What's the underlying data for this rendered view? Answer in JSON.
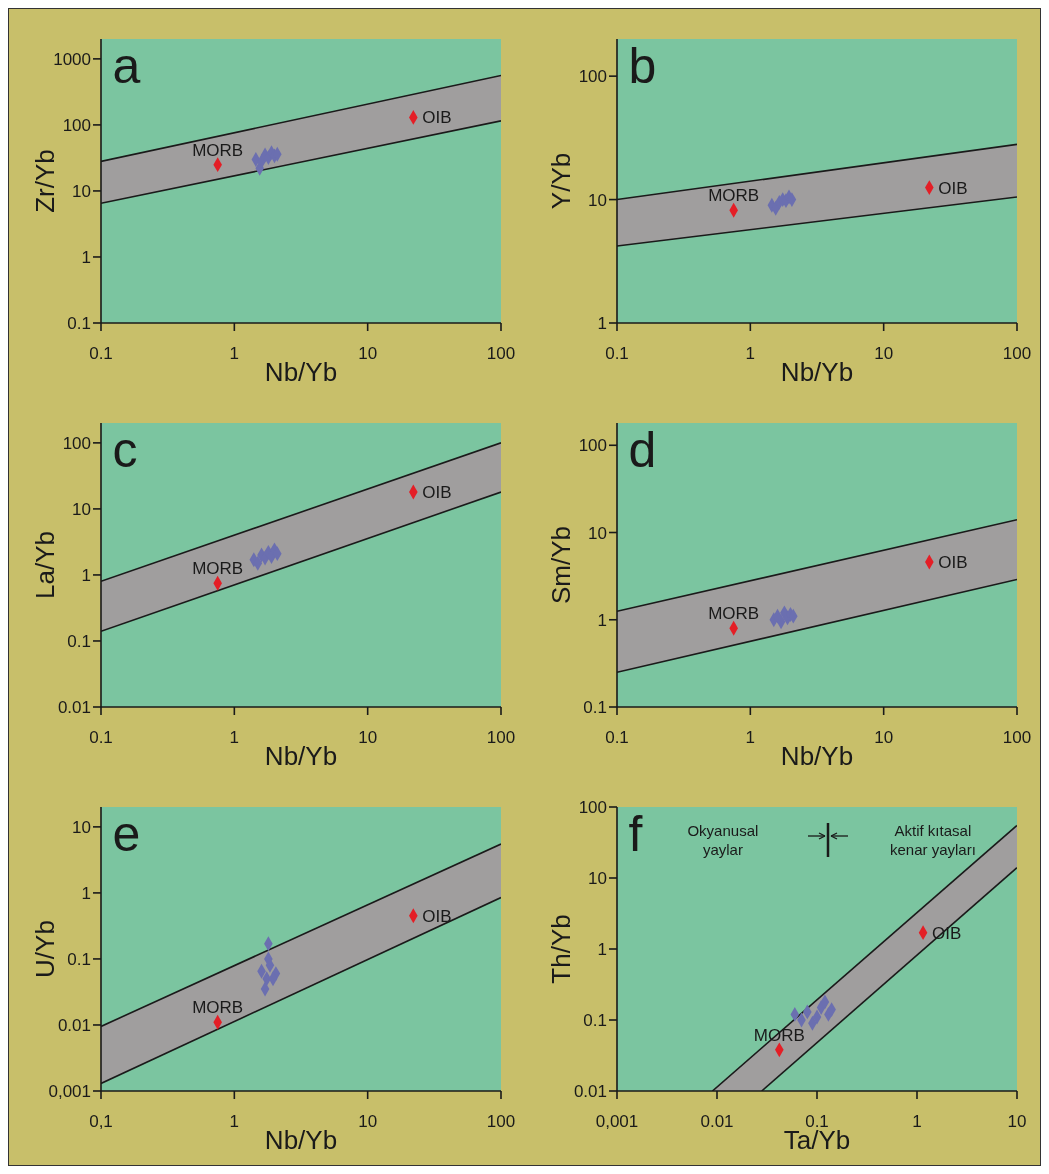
{
  "chart_data": [
    {
      "type": "scatter",
      "title": "a",
      "xlabel": "Nb/Yb",
      "ylabel": "Zr/Yb",
      "log": "xy",
      "xlim": [
        0.1,
        100
      ],
      "ylim": [
        0.1,
        2000
      ],
      "xticks": [
        0.1,
        1,
        10,
        100
      ],
      "yticks": [
        0.1,
        1,
        10,
        100,
        1000
      ],
      "series": [
        {
          "type": "area",
          "color": "#a09e9e",
          "x": [
            0.1,
            100
          ],
          "values": [
            28,
            560
          ]
        },
        {
          "type": "area",
          "color": "#7bc5a0",
          "x": [
            0.1,
            100
          ],
          "values": [
            6.5,
            115
          ]
        },
        {
          "type": "scatter",
          "marker": "diamond",
          "color": "#6b6fb0",
          "x": [
            1.45,
            1.55,
            1.6,
            1.7,
            1.8,
            1.9,
            2.0,
            2.1
          ],
          "values": [
            30,
            22,
            28,
            35,
            32,
            38,
            34,
            36
          ]
        },
        {
          "type": "scatter",
          "marker": "diamond",
          "color": "#e41e26",
          "x": [
            0.75,
            22
          ],
          "values": [
            25,
            130
          ]
        }
      ],
      "annotations": [
        {
          "text": "MORB",
          "x": 0.75,
          "y": 25
        },
        {
          "text": "OIB",
          "x": 22,
          "y": 130
        }
      ]
    },
    {
      "type": "scatter",
      "title": "b",
      "xlabel": "Nb/Yb",
      "ylabel": "Y/Yb",
      "log": "xy",
      "xlim": [
        0.1,
        100
      ],
      "ylim": [
        1,
        200
      ],
      "xticks": [
        0.1,
        1,
        10,
        100
      ],
      "yticks": [
        1,
        10,
        100
      ],
      "series": [
        {
          "type": "area",
          "color": "#a09e9e",
          "x": [
            0.1,
            100
          ],
          "values": [
            10,
            28
          ]
        },
        {
          "type": "area",
          "color": "#7bc5a0",
          "x": [
            0.1,
            100
          ],
          "values": [
            4.2,
            10.5
          ]
        },
        {
          "type": "scatter",
          "marker": "diamond",
          "color": "#6b6fb0",
          "x": [
            1.45,
            1.55,
            1.65,
            1.75,
            1.85,
            1.95,
            2.05
          ],
          "values": [
            9,
            8.5,
            9.5,
            10,
            9.8,
            10.5,
            10
          ]
        },
        {
          "type": "scatter",
          "marker": "diamond",
          "color": "#e41e26",
          "x": [
            0.75,
            22
          ],
          "values": [
            8.2,
            12.5
          ]
        }
      ],
      "annotations": [
        {
          "text": "MORB",
          "x": 0.75,
          "y": 8.2
        },
        {
          "text": "OIB",
          "x": 22,
          "y": 12.5
        }
      ]
    },
    {
      "type": "scatter",
      "title": "c",
      "xlabel": "Nb/Yb",
      "ylabel": "La/Yb",
      "log": "xy",
      "xlim": [
        0.1,
        100
      ],
      "ylim": [
        0.01,
        200
      ],
      "xticks": [
        0.1,
        1,
        10,
        100
      ],
      "yticks": [
        0.01,
        0.1,
        1,
        10,
        100
      ],
      "series": [
        {
          "type": "area",
          "color": "#a09e9e",
          "x": [
            0.1,
            100
          ],
          "values": [
            0.8,
            100
          ]
        },
        {
          "type": "area",
          "color": "#7bc5a0",
          "x": [
            0.1,
            100
          ],
          "values": [
            0.14,
            18
          ]
        },
        {
          "type": "scatter",
          "marker": "diamond",
          "color": "#6b6fb0",
          "x": [
            1.4,
            1.5,
            1.6,
            1.7,
            1.8,
            1.9,
            2.0,
            2.1
          ],
          "values": [
            1.7,
            1.5,
            2.0,
            1.8,
            2.2,
            1.9,
            2.4,
            2.1
          ]
        },
        {
          "type": "scatter",
          "marker": "diamond",
          "color": "#e41e26",
          "x": [
            0.75,
            22
          ],
          "values": [
            0.75,
            18
          ]
        }
      ],
      "annotations": [
        {
          "text": "MORB",
          "x": 0.75,
          "y": 0.75
        },
        {
          "text": "OIB",
          "x": 22,
          "y": 18
        }
      ]
    },
    {
      "type": "scatter",
      "title": "d",
      "xlabel": "Nb/Yb",
      "ylabel": "Sm/Yb",
      "log": "xy",
      "xlim": [
        0.1,
        100
      ],
      "ylim": [
        0.1,
        180
      ],
      "xticks": [
        0.1,
        1,
        10,
        100
      ],
      "yticks": [
        0.1,
        1,
        10,
        100
      ],
      "series": [
        {
          "type": "area",
          "color": "#a09e9e",
          "x": [
            0.1,
            100
          ],
          "values": [
            1.25,
            14
          ]
        },
        {
          "type": "area",
          "color": "#7bc5a0",
          "x": [
            0.1,
            100
          ],
          "values": [
            0.25,
            2.9
          ]
        },
        {
          "type": "scatter",
          "marker": "diamond",
          "color": "#6b6fb0",
          "x": [
            1.5,
            1.6,
            1.7,
            1.8,
            1.9,
            2.0,
            2.1
          ],
          "values": [
            1.0,
            1.1,
            0.95,
            1.2,
            1.05,
            1.15,
            1.1
          ]
        },
        {
          "type": "scatter",
          "marker": "diamond",
          "color": "#e41e26",
          "x": [
            0.75,
            22
          ],
          "values": [
            0.8,
            4.6
          ]
        }
      ],
      "annotations": [
        {
          "text": "MORB",
          "x": 0.75,
          "y": 0.8
        },
        {
          "text": "OIB",
          "x": 22,
          "y": 4.6
        }
      ]
    },
    {
      "type": "scatter",
      "title": "e",
      "xlabel": "Nb/Yb",
      "ylabel": "U/Yb",
      "log": "xy",
      "xlim": [
        0.1,
        100
      ],
      "ylim": [
        0.001,
        20
      ],
      "xticks": [
        {
          "value": 0.1,
          "label": "0,1"
        },
        1,
        10,
        100
      ],
      "yticks": [
        {
          "value": 0.001,
          "label": "0,001"
        },
        0.01,
        0.1,
        1,
        10
      ],
      "series": [
        {
          "type": "area",
          "color": "#a09e9e",
          "x": [
            0.1,
            100
          ],
          "values": [
            0.0095,
            5.5
          ]
        },
        {
          "type": "area",
          "color": "#7bc5a0",
          "x": [
            0.1,
            100
          ],
          "values": [
            0.0013,
            0.85
          ]
        },
        {
          "type": "scatter",
          "marker": "diamond",
          "color": "#6b6fb0",
          "x": [
            1.8,
            1.8,
            1.6,
            2.05,
            1.75,
            1.7,
            1.85,
            1.95
          ],
          "values": [
            0.17,
            0.1,
            0.065,
            0.06,
            0.05,
            0.035,
            0.08,
            0.05
          ]
        },
        {
          "type": "scatter",
          "marker": "diamond",
          "color": "#e41e26",
          "x": [
            0.75,
            22
          ],
          "values": [
            0.011,
            0.45
          ]
        }
      ],
      "annotations": [
        {
          "text": "MORB",
          "x": 0.75,
          "y": 0.011
        },
        {
          "text": "OIB",
          "x": 22,
          "y": 0.45
        }
      ]
    },
    {
      "type": "scatter",
      "title": "f",
      "xlabel": "Ta/Yb",
      "ylabel": "Th/Yb",
      "log": "xy",
      "xlim": [
        0.001,
        10
      ],
      "ylim": [
        0.01,
        100
      ],
      "xticks": [
        {
          "value": 0.001,
          "label": "0,001"
        },
        0.01,
        0.1,
        1,
        10
      ],
      "yticks": [
        0.01,
        0.1,
        1,
        10,
        100
      ],
      "series": [
        {
          "type": "area",
          "color": "#a09e9e",
          "x": [
            0.009,
            10
          ],
          "values": [
            0.01,
            55
          ]
        },
        {
          "type": "area",
          "color": "#7bc5a0",
          "x": [
            0.028,
            10
          ],
          "values": [
            0.01,
            14
          ]
        },
        {
          "type": "scatter",
          "marker": "diamond",
          "color": "#6b6fb0",
          "x": [
            0.06,
            0.07,
            0.08,
            0.09,
            0.1,
            0.11,
            0.12,
            0.13,
            0.14
          ],
          "values": [
            0.12,
            0.1,
            0.13,
            0.09,
            0.11,
            0.15,
            0.18,
            0.12,
            0.14
          ]
        },
        {
          "type": "scatter",
          "marker": "diamond",
          "color": "#e41e26",
          "x": [
            0.042,
            1.15
          ],
          "values": [
            0.038,
            1.7
          ]
        }
      ],
      "annotations": [
        {
          "text": "MORB",
          "x": 0.042,
          "y": 0.038
        },
        {
          "text": "OIB",
          "x": 1.15,
          "y": 1.7
        },
        "Okyanusal yaylar",
        "Aktif kıtasal kenar yayları"
      ]
    }
  ]
}
